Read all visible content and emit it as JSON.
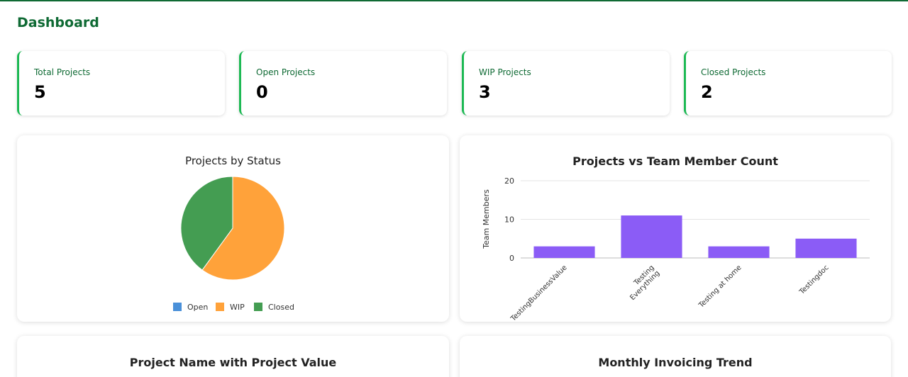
{
  "page": {
    "title": "Dashboard"
  },
  "stats": [
    {
      "label": "Total Projects",
      "value": "5"
    },
    {
      "label": "Open Projects",
      "value": "0"
    },
    {
      "label": "WIP Projects",
      "value": "3"
    },
    {
      "label": "Closed Projects",
      "value": "2"
    }
  ],
  "colors": {
    "brand": "#0f6a34",
    "card_accent": "#1db954",
    "open": "#4a90d9",
    "wip": "#ffa23a",
    "closed": "#449d52",
    "bar": "#8b5cf6"
  },
  "panels": {
    "status_title": "Projects by Status",
    "team_title": "Projects vs Team Member Count",
    "value_title": "Project Name with Project Value",
    "invoice_title": "Monthly Invoicing Trend"
  },
  "chart_data": [
    {
      "type": "pie",
      "title": "Projects by Status",
      "categories": [
        "Open",
        "WIP",
        "Closed"
      ],
      "values": [
        0,
        3,
        2
      ],
      "legend": "bottom"
    },
    {
      "type": "bar",
      "title": "Projects vs Team Member Count",
      "categories": [
        "TestingBusinessValue",
        "Testing Everything",
        "Testing at home",
        "Testingdoc"
      ],
      "category_lines": [
        [
          "TestingBusinessValue"
        ],
        [
          "Testing",
          "Everything"
        ],
        [
          "Testing at home"
        ],
        [
          "Testingdoc"
        ]
      ],
      "values": [
        3,
        11,
        3,
        5
      ],
      "ylabel": "Team Members",
      "ylim": [
        0,
        20
      ],
      "yticks": [
        0,
        10,
        20
      ],
      "grid": true
    }
  ]
}
